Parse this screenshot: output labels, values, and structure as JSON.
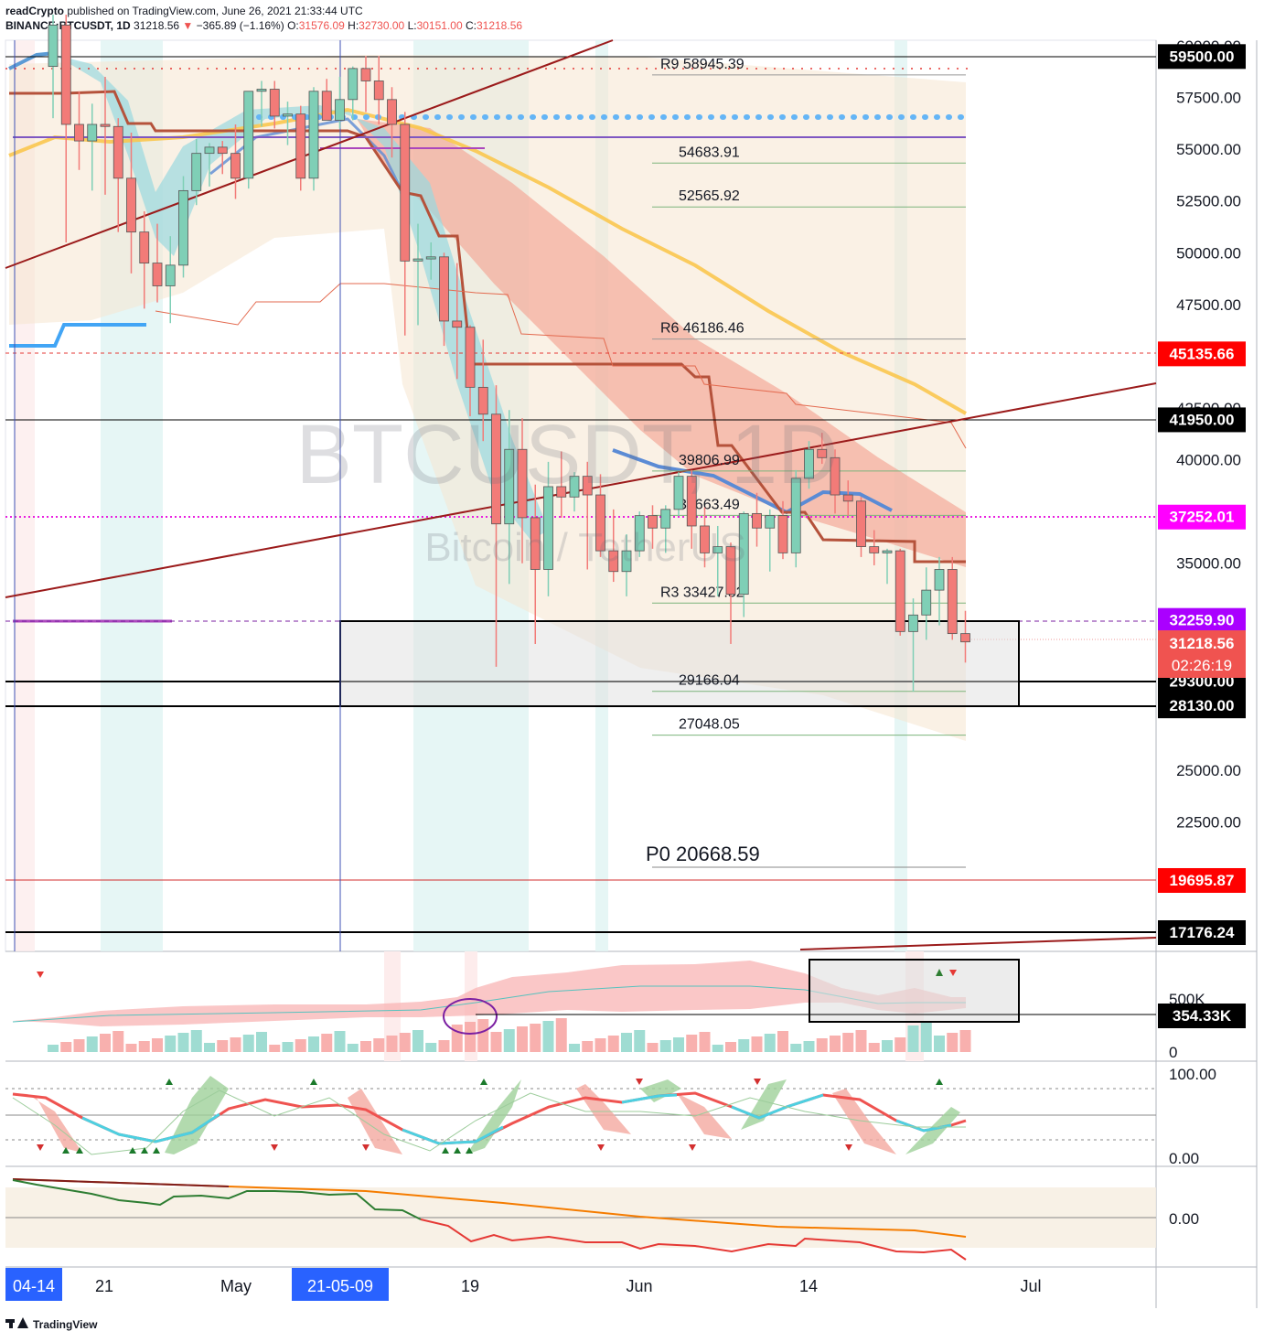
{
  "header": {
    "author": "readCrypto",
    "published": "published on TradingView.com, June 26, 2021 21:33:44 UTC",
    "symbol": "BINANCE:BTCUSDT, 1D",
    "last": "31218.56",
    "change": "−365.89 (−1.16%)",
    "o_label": "O:",
    "o": "31576.09",
    "h_label": "H:",
    "h": "32730.00",
    "l_label": "L:",
    "l": "30151.00",
    "c_label": "C:",
    "c": "31218.56"
  },
  "watermark": {
    "title": "BTCUSDT, 1D",
    "subtitle": "Bitcoin / TetherUS"
  },
  "price_axis": {
    "ticks": [
      "60000.00",
      "57500.00",
      "55000.00",
      "52500.00",
      "50000.00",
      "47500.00",
      "42500.00",
      "40000.00",
      "35000.00",
      "25000.00",
      "22500.00"
    ],
    "tick_values": [
      60000,
      57500,
      55000,
      52500,
      50000,
      47500,
      42500,
      40000,
      35000,
      25000,
      22500
    ],
    "badges": [
      {
        "label": "59500.00",
        "value": 59500,
        "bg": "#000000",
        "fg": "#ffffff"
      },
      {
        "label": "45135.66",
        "value": 45135.66,
        "bg": "#ff0000",
        "fg": "#ffffff"
      },
      {
        "label": "41950.00",
        "value": 41950,
        "bg": "#000000",
        "fg": "#ffffff"
      },
      {
        "label": "37252.01",
        "value": 37252.01,
        "bg": "#ff00ff",
        "fg": "#ffffff"
      },
      {
        "label": "32259.90",
        "value": 32259.9,
        "bg": "#aa00ff",
        "fg": "#ffffff"
      },
      {
        "label": "29300.00",
        "value": 29300,
        "bg": "#000000",
        "fg": "#ffffff"
      },
      {
        "label": "28130.00",
        "value": 28130,
        "bg": "#000000",
        "fg": "#ffffff"
      },
      {
        "label": "19695.87",
        "value": 19695.87,
        "bg": "#ff0000",
        "fg": "#ffffff"
      },
      {
        "label": "17176.24",
        "value": 17176.24,
        "bg": "#000000",
        "fg": "#ffffff"
      }
    ],
    "last_price": {
      "label": "31218.56",
      "countdown": "02:26:19",
      "bg": "#f05350",
      "fg": "#ffffff"
    }
  },
  "pivots": [
    {
      "label": "R9 58945.39",
      "value": 58945.39
    },
    {
      "label": "54683.91",
      "value": 54683.91
    },
    {
      "label": "52565.92",
      "value": 52565.92
    },
    {
      "label": "R6 46186.46",
      "value": 46186.46
    },
    {
      "label": "39806.99",
      "value": 39806.99
    },
    {
      "label": "37663.49",
      "value": 37663.49
    },
    {
      "label": "R3 33427.52",
      "value": 33427.52
    },
    {
      "label": "29166.04",
      "value": 29166.04
    },
    {
      "label": "27048.05",
      "value": 27048.05
    },
    {
      "label": "P0 20668.59",
      "value": 20668.59
    }
  ],
  "volume_axis": {
    "tick": "500K",
    "zero": "0",
    "badge": "354.33K"
  },
  "stoch_axis": {
    "top": "100.00",
    "bottom": "0.00"
  },
  "osc_axis": {
    "zero": "0.00"
  },
  "time_axis": {
    "labels": [
      "21",
      "May",
      "19",
      "Jun",
      "14",
      "Jul"
    ],
    "badges": [
      "04-14",
      "21-05-09"
    ]
  },
  "footer": {
    "brand": "TradingView"
  },
  "chart_data": {
    "type": "candlestick",
    "series": [
      {
        "name": "BINANCE:BTCUSDT, 1D",
        "ohlc": [
          [
            59000,
            61500,
            56500,
            61000
          ],
          [
            61000,
            61500,
            50500,
            56200
          ],
          [
            56200,
            57800,
            54000,
            55400
          ],
          [
            55400,
            57200,
            53000,
            56200
          ],
          [
            56200,
            58500,
            52800,
            56100
          ],
          [
            56100,
            56500,
            51000,
            53600
          ],
          [
            53600,
            55800,
            49000,
            51000
          ],
          [
            51000,
            52000,
            47300,
            49500
          ],
          [
            49500,
            51400,
            47600,
            48400
          ],
          [
            48400,
            50800,
            46600,
            49400
          ],
          [
            49400,
            53700,
            48800,
            53000
          ],
          [
            53000,
            55500,
            52300,
            54800
          ],
          [
            54800,
            55300,
            53200,
            55100
          ],
          [
            55100,
            55400,
            53800,
            54800
          ],
          [
            54800,
            56200,
            52600,
            53600
          ],
          [
            53600,
            57800,
            53100,
            57800
          ],
          [
            57800,
            58300,
            56100,
            57900
          ],
          [
            57900,
            58300,
            56000,
            56600
          ],
          [
            56600,
            57300,
            55200,
            56700
          ],
          [
            56700,
            57100,
            53000,
            53600
          ],
          [
            53600,
            58000,
            53000,
            57800
          ],
          [
            57800,
            58400,
            56700,
            56400
          ],
          [
            56400,
            58500,
            56000,
            57400
          ],
          [
            57400,
            59000,
            56400,
            58900
          ],
          [
            58900,
            59500,
            56800,
            58300
          ],
          [
            58300,
            59500,
            56200,
            57400
          ],
          [
            57400,
            58000,
            54600,
            56200
          ],
          [
            56200,
            56800,
            46000,
            49600
          ],
          [
            49600,
            51400,
            46500,
            49700
          ],
          [
            49700,
            50500,
            48700,
            49800
          ],
          [
            49800,
            50000,
            45500,
            46700
          ],
          [
            46700,
            49500,
            43900,
            46400
          ],
          [
            46400,
            46500,
            42100,
            43500
          ],
          [
            43500,
            45800,
            40900,
            42200
          ],
          [
            42200,
            43600,
            30000,
            36900
          ],
          [
            36900,
            42400,
            34000,
            40500
          ],
          [
            40500,
            42000,
            35000,
            37200
          ],
          [
            37200,
            38800,
            31100,
            34700
          ],
          [
            34700,
            39900,
            33400,
            38700
          ],
          [
            38700,
            40400,
            37200,
            38200
          ],
          [
            38200,
            39400,
            37500,
            39200
          ],
          [
            39200,
            39900,
            34700,
            38300
          ],
          [
            38300,
            39300,
            35300,
            35600
          ],
          [
            35600,
            37600,
            34100,
            34600
          ],
          [
            34600,
            36400,
            33400,
            35600
          ],
          [
            35600,
            37500,
            35300,
            37300
          ],
          [
            37300,
            37800,
            35700,
            36700
          ],
          [
            36700,
            37800,
            35500,
            37600
          ],
          [
            37600,
            39400,
            37300,
            39200
          ],
          [
            39200,
            39500,
            35700,
            36800
          ],
          [
            36800,
            37700,
            34800,
            35500
          ],
          [
            35500,
            36800,
            33400,
            35800
          ],
          [
            35800,
            36000,
            31100,
            33500
          ],
          [
            33500,
            37500,
            32400,
            37400
          ],
          [
            37400,
            38400,
            35800,
            36700
          ],
          [
            36700,
            37600,
            34600,
            37300
          ],
          [
            37300,
            38000,
            35200,
            35500
          ],
          [
            35500,
            39500,
            34800,
            39100
          ],
          [
            39100,
            40900,
            38600,
            40500
          ],
          [
            40500,
            41300,
            39800,
            40100
          ],
          [
            40100,
            40500,
            37400,
            38300
          ],
          [
            38300,
            39000,
            37300,
            38000
          ],
          [
            38000,
            38200,
            35300,
            35800
          ],
          [
            35800,
            36600,
            34900,
            35500
          ],
          [
            35500,
            35700,
            34000,
            35600
          ],
          [
            35600,
            35700,
            31500,
            31700
          ],
          [
            31700,
            33300,
            28800,
            32500
          ],
          [
            32500,
            34800,
            31300,
            33700
          ],
          [
            33700,
            35300,
            32000,
            34700
          ],
          [
            34700,
            35300,
            31300,
            31600
          ],
          [
            31600,
            32700,
            30200,
            31200
          ]
        ]
      }
    ],
    "x_labels": [
      "21",
      "May",
      "19",
      "Jun",
      "14",
      "Jul"
    ],
    "horizontal_levels": [
      59500,
      45135.66,
      41950,
      37252.01,
      32259.9,
      29300,
      28130,
      19695.87,
      17176.24
    ],
    "zone": {
      "from": 28130,
      "to": 32259.9
    },
    "y_range": [
      15000,
      61000
    ]
  }
}
